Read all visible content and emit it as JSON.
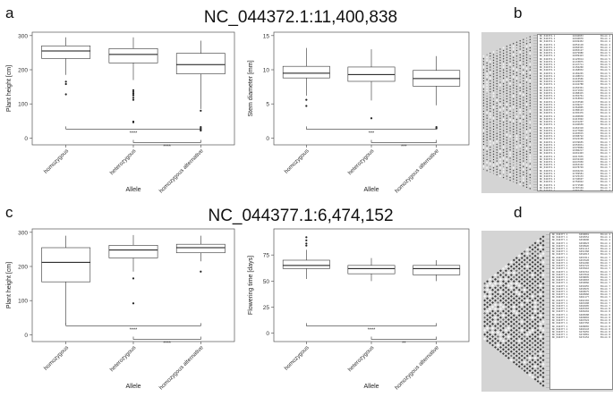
{
  "panels": {
    "a": "a",
    "b": "b",
    "c": "c",
    "d": "d"
  },
  "rows": {
    "top_title": "NC_044372.1:11,400,838",
    "bottom_title": "NC_044377.1:6,474,152"
  },
  "chart_data": [
    {
      "type": "box",
      "categories": [
        "homozygous",
        "heterozygous",
        "homozygous alternative"
      ],
      "ylabel": "Plant height [cm]",
      "xlabel": "Allele",
      "ylim": [
        -20,
        310
      ],
      "yticks": [
        0,
        100,
        200,
        300
      ],
      "boxes": [
        {
          "min": 185,
          "q1": 233,
          "median": 255,
          "q3": 270,
          "max": 295,
          "outliers": [
            165,
            158,
            128
          ]
        },
        {
          "min": 170,
          "q1": 220,
          "median": 245,
          "q3": 262,
          "max": 295,
          "outliers": [
            140,
            135,
            130,
            125,
            118,
            112,
            48,
            46
          ]
        },
        {
          "min": 85,
          "q1": 188,
          "median": 215,
          "q3": 248,
          "max": 285,
          "outliers": [
            80,
            32,
            28,
            25,
            22
          ]
        }
      ],
      "brackets": [
        {
          "from": 0,
          "to": 2,
          "label": "****"
        },
        {
          "from": 1,
          "to": 2,
          "label": "****"
        }
      ]
    },
    {
      "type": "box",
      "categories": [
        "homozygous",
        "heterozygous",
        "homozygous alternative"
      ],
      "ylabel": "Stem diameter [mm]",
      "xlabel": "Allele",
      "ylim": [
        -1,
        15.5
      ],
      "yticks": [
        0,
        5,
        10,
        15
      ],
      "boxes": [
        {
          "min": 6.2,
          "q1": 8.8,
          "median": 9.5,
          "q3": 10.5,
          "max": 13.2,
          "outliers": [
            5.6,
            4.7
          ]
        },
        {
          "min": 5.5,
          "q1": 8.3,
          "median": 9.3,
          "q3": 10.4,
          "max": 13.0,
          "outliers": [
            2.9
          ]
        },
        {
          "min": 4.8,
          "q1": 7.6,
          "median": 8.7,
          "q3": 9.9,
          "max": 12.0,
          "outliers": [
            1.6,
            1.4
          ]
        }
      ],
      "brackets": [
        {
          "from": 0,
          "to": 2,
          "label": "***"
        },
        {
          "from": 1,
          "to": 2,
          "label": "***"
        }
      ]
    },
    {
      "type": "box",
      "categories": [
        "homozygous",
        "heterozygous",
        "homozygous alternative"
      ],
      "ylabel": "Plant height [cm]",
      "xlabel": "Allele",
      "ylim": [
        -20,
        310
      ],
      "yticks": [
        0,
        100,
        200,
        300
      ],
      "boxes": [
        {
          "min": 30,
          "q1": 155,
          "median": 212,
          "q3": 255,
          "max": 290,
          "outliers": []
        },
        {
          "min": 185,
          "q1": 225,
          "median": 248,
          "q3": 262,
          "max": 292,
          "outliers": [
            165,
            92
          ]
        },
        {
          "min": 215,
          "q1": 240,
          "median": 255,
          "q3": 265,
          "max": 290,
          "outliers": [
            185
          ]
        }
      ],
      "brackets": [
        {
          "from": 0,
          "to": 2,
          "label": "****"
        },
        {
          "from": 1,
          "to": 2,
          "label": "****"
        }
      ]
    },
    {
      "type": "box",
      "categories": [
        "homozygous",
        "heterozygous",
        "homozygous alternative"
      ],
      "ylabel": "Flowering time [days]",
      "xlabel": "Allele",
      "ylim": [
        -8,
        100
      ],
      "yticks": [
        0,
        25,
        50,
        75
      ],
      "boxes": [
        {
          "min": 52,
          "q1": 62,
          "median": 65,
          "q3": 70,
          "max": 80,
          "outliers": [
            92,
            89,
            86,
            84
          ]
        },
        {
          "min": 50,
          "q1": 57,
          "median": 62,
          "q3": 65,
          "max": 72,
          "outliers": []
        },
        {
          "min": 50,
          "q1": 56,
          "median": 62,
          "q3": 65,
          "max": 70,
          "outliers": []
        }
      ],
      "brackets": [
        {
          "from": 0,
          "to": 2,
          "label": "****"
        },
        {
          "from": 1,
          "to": 2,
          "label": "**"
        }
      ]
    }
  ],
  "ld_b": {
    "table_rows": [
      [
        "NC_044372.1",
        "11046853",
        "Block 4"
      ],
      [
        "NC_044372.1",
        "11046870",
        "Block 4"
      ],
      [
        "NC_044372.1",
        "11049452",
        "Block 4"
      ],
      [
        "NC_044372.1",
        "11052118",
        "Block 4"
      ],
      [
        "NC_044372.1",
        "11060325",
        "Block 4"
      ],
      [
        "NC_044372.1",
        "11065127",
        "Block 4"
      ],
      [
        "NC_044372.1",
        "11079980",
        "Block 5"
      ],
      [
        "NC_044372.1",
        "11099423",
        "Block 5"
      ],
      [
        "NC_044372.1",
        "11125014",
        "Block 5"
      ],
      [
        "NC_044372.1",
        "11133875",
        "Block 5"
      ],
      [
        "NC_044372.1",
        "11147711",
        "Block 5"
      ],
      [
        "NC_044372.1",
        "11156260",
        "Block 5"
      ],
      [
        "NC_044372.1",
        "11168932",
        "Block 5"
      ],
      [
        "NC_044372.1",
        "11182245",
        "Block 5"
      ],
      [
        "NC_044372.1",
        "11198074",
        "Block 5"
      ],
      [
        "NC_044372.1",
        "11210566",
        "Block 5"
      ],
      [
        "NC_044372.1",
        "11226019",
        "Block 5"
      ],
      [
        "NC_044372.1",
        "11242788",
        "Block 5"
      ],
      [
        "NC_044372.1",
        "11256301",
        "Block 5"
      ],
      [
        "NC_044372.1",
        "11271932",
        "Block 5"
      ],
      [
        "NC_044372.1",
        "11288415",
        "Block 6"
      ],
      [
        "NC_044372.1",
        "11302761",
        "Block 6"
      ],
      [
        "NC_044372.1",
        "11318044",
        "Block 6"
      ],
      [
        "NC_044372.1",
        "11333590",
        "Block 6"
      ],
      [
        "NC_044372.1",
        "11349217",
        "Block 6"
      ],
      [
        "NC_044372.1",
        "11364805",
        "Block 6"
      ],
      [
        "NC_044372.1",
        "11380123",
        "Block 6"
      ],
      [
        "NC_044372.1",
        "11395476",
        "Block 6"
      ],
      [
        "NC_044372.1",
        "11400838",
        "Block 6"
      ],
      [
        "NC_044372.1",
        "11415992",
        "Block 6"
      ],
      [
        "NC_044372.1",
        "11431207",
        "Block 6"
      ],
      [
        "NC_044372.1",
        "11446659",
        "Block 6"
      ],
      [
        "NC_044372.1",
        "11462318",
        "Block 6"
      ],
      [
        "NC_044372.1",
        "11477840",
        "Block 6"
      ],
      [
        "NC_044372.1",
        "11493015",
        "Block 6"
      ],
      [
        "NC_044372.1",
        "11508722",
        "Block 6"
      ],
      [
        "NC_044372.1",
        "11524109",
        "Block 7"
      ],
      [
        "NC_044372.1",
        "11539655",
        "Block 7"
      ],
      [
        "NC_044372.1",
        "11555031",
        "Block 7"
      ],
      [
        "NC_044372.1",
        "11570884",
        "Block 7"
      ],
      [
        "NC_044372.1",
        "11586217",
        "Block 7"
      ],
      [
        "NC_044372.1",
        "11601493",
        "Block 7"
      ],
      [
        "NC_044372.1",
        "11617035",
        "Block 7"
      ],
      [
        "NC_044372.1",
        "11632418",
        "Block 7"
      ],
      [
        "NC_044372.1",
        "11647950",
        "Block 7"
      ],
      [
        "NC_044372.1",
        "11663102",
        "Block 7"
      ],
      [
        "NC_044372.1",
        "11678749",
        "Block 7"
      ],
      [
        "NC_044372.1",
        "11694216",
        "Block 7"
      ],
      [
        "NC_044372.1",
        "11709581",
        "Block 7"
      ],
      [
        "NC_044372.1",
        "11725133",
        "Block 7"
      ],
      [
        "NC_044372.1",
        "11740697",
        "Block 7"
      ],
      [
        "NC_044372.1",
        "11756042",
        "Block 7"
      ],
      [
        "NC_044372.1",
        "11771590",
        "Block 7"
      ],
      [
        "NC_044372.1",
        "11787104",
        "Block 7"
      ],
      [
        "NC_044372.1",
        "11802466",
        "Block 7"
      ],
      [
        "NC_044372.1",
        "11818035",
        "Block 7"
      ],
      [
        "NC_044372.1",
        "11833572",
        "Block 7"
      ]
    ]
  },
  "ld_d": {
    "table_rows": [
      [
        "NC_04437?.1",
        "6450001",
        "Block 4"
      ],
      [
        "NC_04437?.1",
        "6450552",
        "Block 4"
      ],
      [
        "NC_04437?.1",
        "6450690",
        "Block 4"
      ],
      [
        "NC_04437?.1",
        "6450823",
        "Block 4"
      ],
      [
        "NC_04437?.1",
        "6450926",
        "Block 4"
      ],
      [
        "NC_04437?.1",
        "6451113",
        "Block 4"
      ],
      [
        "NC_04437?.1",
        "6451368",
        "Block 4"
      ],
      [
        "NC_04437?.1",
        "6452013",
        "Block 5"
      ],
      [
        "NC_04437?.1",
        "6453311",
        "Block 7"
      ],
      [
        "NC_04437?.1",
        "6453528",
        "Block 7"
      ],
      [
        "NC_04437?.1",
        "6454206",
        "Block 7"
      ],
      [
        "NC_04437?.1",
        "6454722",
        "Block 7"
      ],
      [
        "NC_04437?.1",
        "6455910",
        "Block 7"
      ],
      [
        "NC_04437?.1",
        "6456716",
        "Block 7"
      ],
      [
        "NC_04437?.1",
        "6457844",
        "Block 7"
      ],
      [
        "NC_04437?.1",
        "6458895",
        "Block 7"
      ],
      [
        "NC_04437?.1",
        "6459003",
        "Block 7"
      ],
      [
        "NC_04437?.1",
        "6459066",
        "Block 7"
      ],
      [
        "NC_04437?.1",
        "6459455",
        "Block 7"
      ],
      [
        "NC_04437?.1",
        "6459976",
        "Block 7"
      ],
      [
        "NC_04437?.1",
        "6460675",
        "Block 7"
      ],
      [
        "NC_04437?.1",
        "6460960",
        "Block 7"
      ],
      [
        "NC_04437?.1",
        "6461177",
        "Block 7"
      ],
      [
        "NC_04437?.1",
        "6462102",
        "Block 7"
      ],
      [
        "NC_04437?.1",
        "6463208",
        "Block 7"
      ],
      [
        "NC_04437?.1",
        "6464905",
        "Block 7"
      ],
      [
        "NC_04437?.1",
        "6465303",
        "Block 8"
      ],
      [
        "NC_04437?.1",
        "6466204",
        "Block 8"
      ],
      [
        "NC_04437?.1",
        "6466588",
        "Block 8"
      ],
      [
        "NC_04437?.1",
        "6466802",
        "Block 8"
      ],
      [
        "NC_04437?.1",
        "6467024",
        "Block 8"
      ],
      [
        "NC_04437?.1",
        "6467350",
        "Block 8"
      ],
      [
        "NC_04437?.1",
        "6468065",
        "Block 8"
      ],
      [
        "NC_04437?.1",
        "6469143",
        "Block 8"
      ],
      [
        "NC_04437?.1",
        "6470255",
        "Block 8"
      ],
      [
        "NC_04437?.1",
        "6472881",
        "Block 8"
      ],
      [
        "NC_04437?.1",
        "6474152",
        "Block 8"
      ]
    ]
  }
}
